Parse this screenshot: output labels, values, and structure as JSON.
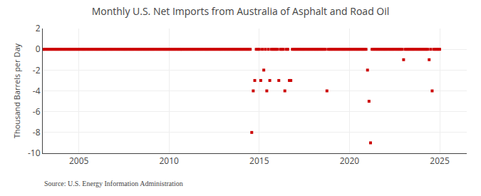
{
  "chart_data": {
    "type": "scatter",
    "title": "Monthly U.S. Net Imports from Australia of Asphalt and Road Oil",
    "ylabel": "Thousand Barrels per Day",
    "annotations": [
      "Source: U.S. Energy Information Administration"
    ],
    "color": "#cc0000",
    "marker": "square",
    "grid": true,
    "xlim": [
      2003.0,
      2026.5
    ],
    "ylim": [
      -10,
      2
    ],
    "xticks": [
      2005,
      2010,
      2015,
      2020,
      2025
    ],
    "yticks": [
      -10,
      -8,
      -6,
      -4,
      -2,
      0,
      2
    ],
    "x": [
      2003.0,
      2003.083,
      2003.167,
      2003.25,
      2003.333,
      2003.417,
      2003.5,
      2003.583,
      2003.667,
      2003.75,
      2003.833,
      2003.917,
      2004.0,
      2004.083,
      2004.167,
      2004.25,
      2004.333,
      2004.417,
      2004.5,
      2004.583,
      2004.667,
      2004.75,
      2004.833,
      2004.917,
      2005.0,
      2005.083,
      2005.167,
      2005.25,
      2005.333,
      2005.417,
      2005.5,
      2005.583,
      2005.667,
      2005.75,
      2005.833,
      2005.917,
      2006.0,
      2006.083,
      2006.167,
      2006.25,
      2006.333,
      2006.417,
      2006.5,
      2006.583,
      2006.667,
      2006.75,
      2006.833,
      2006.917,
      2007.0,
      2007.083,
      2007.167,
      2007.25,
      2007.333,
      2007.417,
      2007.5,
      2007.583,
      2007.667,
      2007.75,
      2007.833,
      2007.917,
      2008.0,
      2008.083,
      2008.167,
      2008.25,
      2008.333,
      2008.417,
      2008.5,
      2008.583,
      2008.667,
      2008.75,
      2008.833,
      2008.917,
      2009.0,
      2009.083,
      2009.167,
      2009.25,
      2009.333,
      2009.417,
      2009.5,
      2009.583,
      2009.667,
      2009.75,
      2009.833,
      2009.917,
      2010.0,
      2010.083,
      2010.167,
      2010.25,
      2010.333,
      2010.417,
      2010.5,
      2010.583,
      2010.667,
      2010.75,
      2010.833,
      2010.917,
      2011.0,
      2011.083,
      2011.167,
      2011.25,
      2011.333,
      2011.417,
      2011.5,
      2011.583,
      2011.667,
      2011.75,
      2011.833,
      2011.917,
      2012.0,
      2012.083,
      2012.167,
      2012.25,
      2012.333,
      2012.417,
      2012.5,
      2012.583,
      2012.667,
      2012.75,
      2012.833,
      2012.917,
      2013.0,
      2013.083,
      2013.167,
      2013.25,
      2013.333,
      2013.417,
      2013.5,
      2013.583,
      2013.667,
      2013.75,
      2013.833,
      2013.917,
      2014.0,
      2014.083,
      2014.167,
      2014.25,
      2014.333,
      2014.417,
      2014.5,
      2014.583,
      2014.667,
      2014.75,
      2014.833,
      2014.917,
      2015.0,
      2015.083,
      2015.167,
      2015.25,
      2015.333,
      2015.417,
      2015.5,
      2015.583,
      2015.667,
      2015.75,
      2015.833,
      2015.917,
      2016.0,
      2016.083,
      2016.167,
      2016.25,
      2016.333,
      2016.417,
      2016.5,
      2016.583,
      2016.667,
      2016.75,
      2016.833,
      2016.917,
      2017.0,
      2017.083,
      2017.167,
      2017.25,
      2017.333,
      2017.417,
      2017.5,
      2017.583,
      2017.667,
      2017.75,
      2017.833,
      2017.917,
      2018.0,
      2018.083,
      2018.167,
      2018.25,
      2018.333,
      2018.417,
      2018.5,
      2018.583,
      2018.667,
      2018.75,
      2018.833,
      2018.917,
      2019.0,
      2019.083,
      2019.167,
      2019.25,
      2019.333,
      2019.417,
      2019.5,
      2019.583,
      2019.667,
      2019.75,
      2019.833,
      2019.917,
      2020.0,
      2020.083,
      2020.167,
      2020.25,
      2020.333,
      2020.417,
      2020.5,
      2020.583,
      2020.667,
      2020.75,
      2020.833,
      2020.917,
      2021.0,
      2021.083,
      2021.167,
      2021.25,
      2021.333,
      2021.417,
      2021.5,
      2021.583,
      2021.667,
      2021.75,
      2021.833,
      2021.917,
      2022.0,
      2022.083,
      2022.167,
      2022.25,
      2022.333,
      2022.417,
      2022.5,
      2022.583,
      2022.667,
      2022.75,
      2022.833,
      2022.917,
      2023.0,
      2023.083,
      2023.167,
      2023.25,
      2023.333,
      2023.417,
      2023.5,
      2023.583,
      2023.667,
      2023.75,
      2023.833,
      2023.917,
      2024.0,
      2024.083,
      2024.167,
      2024.25,
      2024.333,
      2024.417,
      2024.5,
      2024.583,
      2024.667,
      2024.75,
      2024.833,
      2024.917,
      2025.0
    ],
    "values": [
      0,
      0,
      0,
      0,
      0,
      0,
      0,
      0,
      0,
      0,
      0,
      0,
      0,
      0,
      0,
      0,
      0,
      0,
      0,
      0,
      0,
      0,
      0,
      0,
      0,
      0,
      0,
      0,
      0,
      0,
      0,
      0,
      0,
      0,
      0,
      0,
      0,
      0,
      0,
      0,
      0,
      0,
      0,
      0,
      0,
      0,
      0,
      0,
      0,
      0,
      0,
      0,
      0,
      0,
      0,
      0,
      0,
      0,
      0,
      0,
      0,
      0,
      0,
      0,
      0,
      0,
      0,
      0,
      0,
      0,
      0,
      0,
      0,
      0,
      0,
      0,
      0,
      0,
      0,
      0,
      0,
      0,
      0,
      0,
      0,
      0,
      0,
      0,
      0,
      0,
      0,
      0,
      0,
      0,
      0,
      0,
      0,
      0,
      0,
      0,
      0,
      0,
      0,
      0,
      0,
      0,
      0,
      0,
      0,
      0,
      0,
      0,
      0,
      0,
      0,
      0,
      0,
      0,
      0,
      0,
      0,
      0,
      0,
      0,
      0,
      0,
      0,
      0,
      0,
      0,
      0,
      0,
      0,
      0,
      0,
      0,
      0,
      0,
      0,
      -8.0,
      -4.0,
      -3.0,
      0,
      0,
      0,
      -3.0,
      0,
      -2.0,
      0,
      -4.0,
      0,
      -3.0,
      0,
      0,
      0,
      0,
      0,
      -3.0,
      0,
      0,
      0,
      -4.0,
      0,
      0,
      -3.0,
      -3.0,
      0,
      0,
      0,
      0,
      0,
      0,
      0,
      0,
      0,
      0,
      0,
      0,
      0,
      0,
      0,
      0,
      0,
      0,
      0,
      0,
      0,
      0,
      0,
      -4.0,
      0,
      0,
      0,
      0,
      0,
      0,
      0,
      0,
      0,
      0,
      0,
      0,
      0,
      0,
      0,
      0,
      0,
      0,
      0,
      0,
      0,
      0,
      0,
      0,
      0,
      0,
      -2.0,
      -5.0,
      -9.0,
      0,
      0,
      0,
      0,
      0,
      0,
      0,
      0,
      0,
      0,
      0,
      0,
      0,
      0,
      0,
      0,
      0,
      0,
      0,
      0,
      0,
      -1.0,
      0,
      0,
      0,
      0,
      0,
      0,
      0,
      0,
      0,
      0,
      0,
      0,
      0,
      0,
      0,
      0,
      -1.0,
      0,
      -4.0,
      0,
      0,
      0,
      0,
      0
    ]
  }
}
